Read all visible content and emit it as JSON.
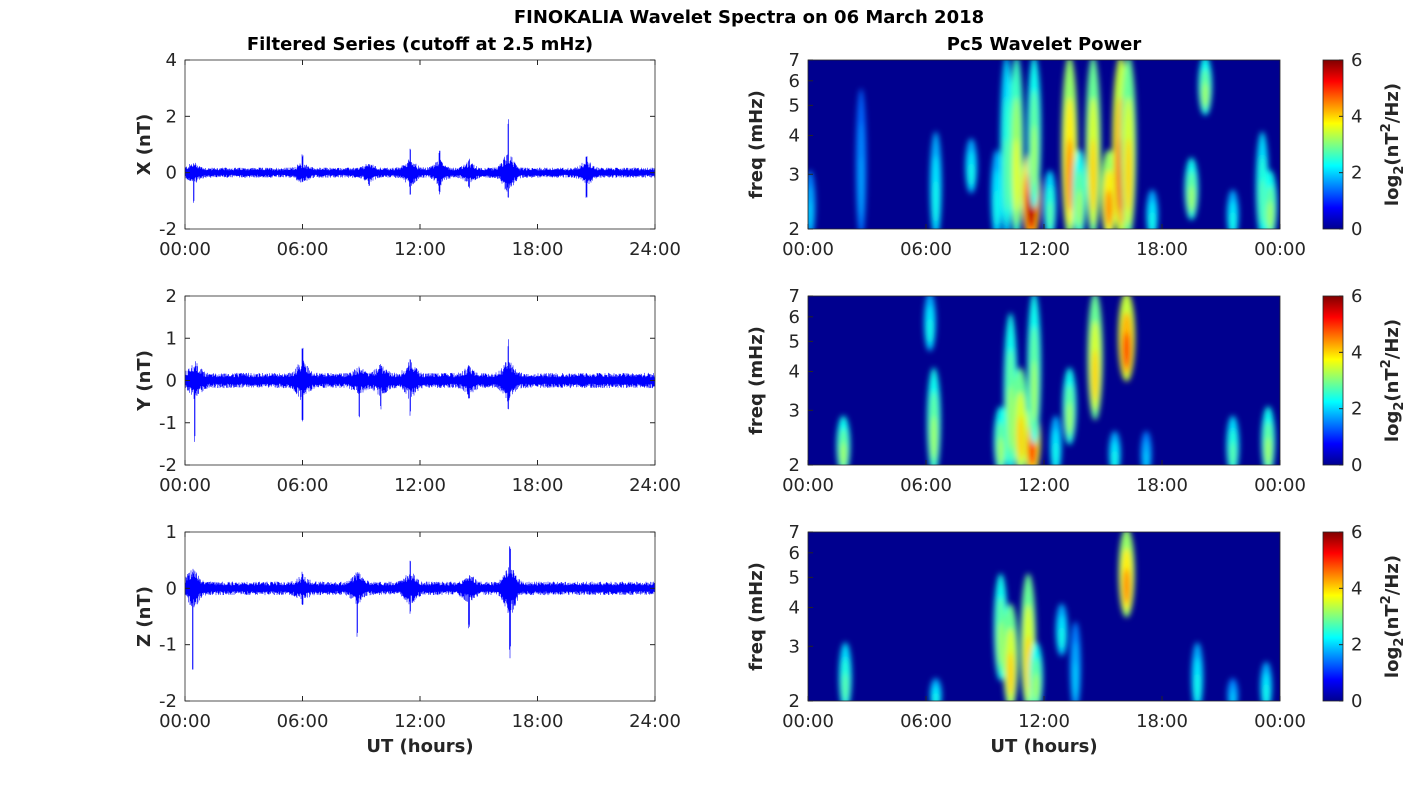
{
  "chart_data": {
    "type": "line+heatmap",
    "title": "FINOKALIA Wavelet Spectra on 06 March 2018",
    "left_title": "Filtered Series (cutoff at 2.5 mHz)",
    "right_title": "Pc5 Wavelet Power",
    "xlabel": "UT (hours)",
    "left_xticks": [
      "00:00",
      "06:00",
      "12:00",
      "18:00",
      "24:00"
    ],
    "right_xticks": [
      "00:00",
      "06:00",
      "12:00",
      "18:00",
      "00:00"
    ],
    "xlim": [
      0,
      24
    ],
    "freq_label": "freq (mHz)",
    "freq_ticks": [
      "2",
      "3",
      "4",
      "5",
      "6",
      "7"
    ],
    "freq_lim": [
      2,
      7
    ],
    "colorbar": {
      "label": "log2(nT2/Hz)",
      "ticks": [
        "0",
        "2",
        "4",
        "6"
      ],
      "lim": [
        0,
        6
      ],
      "colormap": "jet"
    },
    "panels": [
      {
        "component": "X",
        "ylabel": "X (nT)",
        "yticks": [
          "-2",
          "0",
          "2",
          "4"
        ],
        "ylim": [
          -2,
          4
        ],
        "baseline_amplitude": 0.15,
        "events": [
          [
            0.45,
            0,
            -1.1
          ],
          [
            6,
            0.7,
            -0.35
          ],
          [
            9.4,
            0.35,
            -0.5
          ],
          [
            11.5,
            1.0,
            -0.8
          ],
          [
            13,
            0.8,
            -0.8
          ],
          [
            14.5,
            0.5,
            -0.6
          ],
          [
            16.5,
            2.0,
            -0.9
          ],
          [
            20.5,
            0.6,
            -0.9
          ]
        ],
        "wavelet_blobs": [
          [
            0.1,
            2,
            3,
            1.5
          ],
          [
            2.7,
            2,
            5.5,
            1.2
          ],
          [
            6.5,
            2,
            4,
            2
          ],
          [
            8.3,
            2.8,
            3.8,
            2
          ],
          [
            9.6,
            2,
            3.5,
            2
          ],
          [
            10.1,
            2,
            7,
            2.5
          ],
          [
            10.6,
            2,
            7,
            3.5
          ],
          [
            11.35,
            2,
            3.5,
            6
          ],
          [
            11.5,
            2.5,
            7,
            3
          ],
          [
            12.3,
            2,
            3,
            2.5
          ],
          [
            13.3,
            2,
            7,
            4.5
          ],
          [
            13.8,
            2,
            3.5,
            3
          ],
          [
            14.5,
            2,
            7,
            4
          ],
          [
            15.3,
            2,
            3.5,
            4.5
          ],
          [
            15.9,
            2,
            7,
            5
          ],
          [
            16.3,
            2,
            7,
            4
          ],
          [
            17.5,
            2,
            2.6,
            2
          ],
          [
            19.5,
            2.3,
            3.3,
            3
          ],
          [
            20.2,
            5,
            7,
            3
          ],
          [
            21.6,
            2,
            2.6,
            2
          ],
          [
            23.1,
            2,
            4,
            2.5
          ],
          [
            23.5,
            2,
            3,
            3
          ]
        ]
      },
      {
        "component": "Y",
        "ylabel": "Y (nT)",
        "yticks": [
          "-2",
          "-1",
          "0",
          "1",
          "2"
        ],
        "ylim": [
          -2,
          2
        ],
        "baseline_amplitude": 0.15,
        "events": [
          [
            0.5,
            0,
            -1.6
          ],
          [
            6,
            0.8,
            -1.0
          ],
          [
            8.9,
            0,
            -0.9
          ],
          [
            10,
            0.4,
            -0.7
          ],
          [
            11.5,
            0.6,
            -0.9
          ],
          [
            14.5,
            0.4,
            -0.5
          ],
          [
            16.5,
            1.0,
            -0.8
          ]
        ],
        "wavelet_blobs": [
          [
            1.8,
            2,
            2.8,
            3
          ],
          [
            6.4,
            2,
            4,
            3
          ],
          [
            6.2,
            5,
            7,
            2
          ],
          [
            9.8,
            2,
            3,
            3
          ],
          [
            10.3,
            2,
            6,
            3
          ],
          [
            10.8,
            2,
            4,
            4
          ],
          [
            11.4,
            2,
            3,
            5
          ],
          [
            11.5,
            2.5,
            7,
            3
          ],
          [
            12.6,
            2,
            2.8,
            2
          ],
          [
            13.3,
            2.5,
            4,
            3
          ],
          [
            14.6,
            3,
            7,
            4
          ],
          [
            15.6,
            2,
            2.5,
            2
          ],
          [
            16.2,
            4,
            7,
            5
          ],
          [
            17.2,
            2,
            2.5,
            1.5
          ],
          [
            21.6,
            2,
            2.8,
            2.5
          ],
          [
            23.4,
            2,
            3,
            3
          ]
        ]
      },
      {
        "component": "Z",
        "ylabel": "Z (nT)",
        "yticks": [
          "-2",
          "-1",
          "0",
          "1"
        ],
        "ylim": [
          -2,
          1
        ],
        "baseline_amplitude": 0.1,
        "events": [
          [
            0.4,
            0,
            -1.45
          ],
          [
            6,
            0.3,
            -0.3
          ],
          [
            8.8,
            0,
            -0.95
          ],
          [
            11.5,
            0.5,
            -0.5
          ],
          [
            14.5,
            0,
            -0.75
          ],
          [
            16.6,
            0.75,
            -1.25
          ]
        ],
        "wavelet_blobs": [
          [
            1.9,
            2,
            3,
            2.5
          ],
          [
            6.5,
            2,
            2.3,
            2
          ],
          [
            9.8,
            2.5,
            5,
            3
          ],
          [
            10.3,
            2,
            4,
            4
          ],
          [
            11.2,
            2,
            5,
            4
          ],
          [
            11.6,
            2,
            3,
            3
          ],
          [
            12.9,
            3,
            4,
            2
          ],
          [
            13.6,
            2,
            3.5,
            1.5
          ],
          [
            16.2,
            4,
            7,
            4.5
          ],
          [
            19.8,
            2,
            3,
            2
          ],
          [
            21.6,
            2,
            2.3,
            1.5
          ],
          [
            23.3,
            2,
            2.6,
            2
          ]
        ]
      }
    ]
  }
}
